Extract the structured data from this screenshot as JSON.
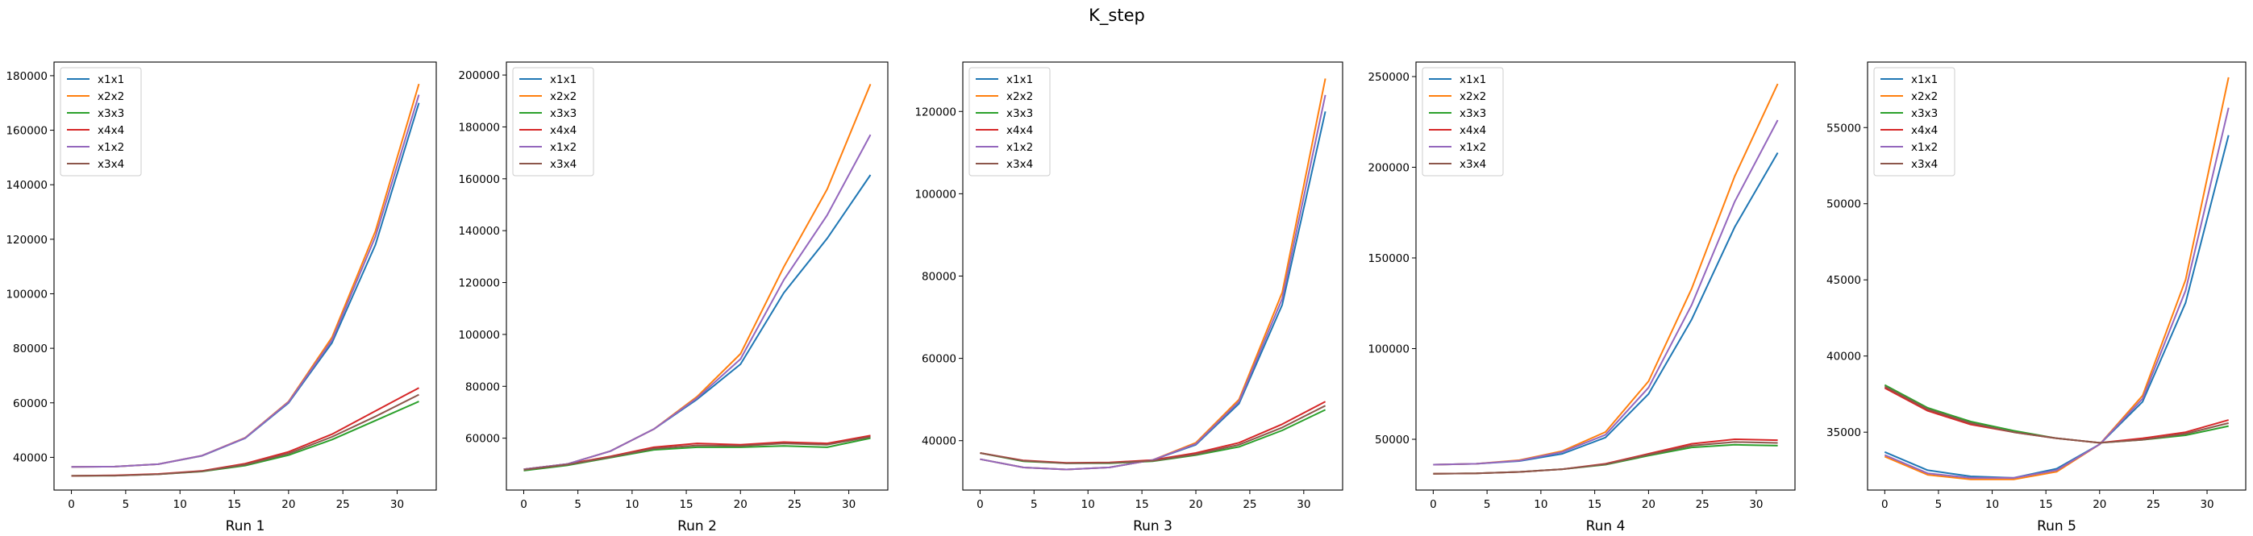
{
  "title": "K_step",
  "colors": {
    "x1x1": "#1f77b4",
    "x2x2": "#ff7f0e",
    "x3x3": "#2ca02c",
    "x4x4": "#d62728",
    "x1x2": "#9467bd",
    "x3x4": "#8c564b"
  },
  "chart_data": [
    {
      "type": "line",
      "xlabel": "Run 1",
      "legend_position": "top-left",
      "x": [
        0,
        4,
        8,
        12,
        16,
        20,
        24,
        28,
        32
      ],
      "xticks": [
        0,
        5,
        10,
        15,
        20,
        25,
        30
      ],
      "ylim": [
        28000,
        185000
      ],
      "yticks": [
        40000,
        60000,
        80000,
        100000,
        120000,
        140000,
        160000,
        180000
      ],
      "series": [
        {
          "name": "x1x1",
          "values": [
            36500,
            36600,
            37500,
            40500,
            47000,
            60000,
            82000,
            118000,
            170000
          ]
        },
        {
          "name": "x2x2",
          "values": [
            36500,
            36600,
            37500,
            40600,
            47200,
            60500,
            84000,
            123000,
            177000
          ]
        },
        {
          "name": "x3x3",
          "values": [
            33200,
            33300,
            33800,
            34800,
            37000,
            40800,
            46500,
            53500,
            60500
          ]
        },
        {
          "name": "x4x4",
          "values": [
            33200,
            33400,
            33900,
            35000,
            37700,
            42000,
            48500,
            57000,
            65500
          ]
        },
        {
          "name": "x1x2",
          "values": [
            36500,
            36600,
            37500,
            40600,
            47100,
            60300,
            83000,
            121000,
            173000
          ]
        },
        {
          "name": "x3x4",
          "values": [
            33200,
            33300,
            33800,
            34900,
            37300,
            41400,
            47500,
            55000,
            63000
          ]
        }
      ]
    },
    {
      "type": "line",
      "xlabel": "Run 2",
      "legend_position": "top-left",
      "x": [
        0,
        4,
        8,
        12,
        16,
        20,
        24,
        28,
        32
      ],
      "xticks": [
        0,
        5,
        10,
        15,
        20,
        25,
        30
      ],
      "ylim": [
        40000,
        205000
      ],
      "yticks": [
        60000,
        80000,
        100000,
        120000,
        140000,
        160000,
        180000,
        200000
      ],
      "series": [
        {
          "name": "x1x1",
          "values": [
            48000,
            50000,
            55000,
            63500,
            75000,
            88500,
            116000,
            137000,
            161500
          ]
        },
        {
          "name": "x2x2",
          "values": [
            48000,
            50000,
            55000,
            63500,
            76000,
            92500,
            126000,
            156000,
            196500
          ]
        },
        {
          "name": "x3x3",
          "values": [
            47500,
            49500,
            52500,
            55500,
            56500,
            56500,
            57000,
            56500,
            60000
          ]
        },
        {
          "name": "x4x4",
          "values": [
            48000,
            50000,
            53000,
            56500,
            58000,
            57500,
            58500,
            58000,
            61000
          ]
        },
        {
          "name": "x1x2",
          "values": [
            48000,
            50000,
            55000,
            63500,
            75500,
            90500,
            121000,
            146000,
            177000
          ]
        },
        {
          "name": "x3x4",
          "values": [
            47800,
            49800,
            52700,
            56000,
            57200,
            57000,
            58000,
            57500,
            60500
          ]
        }
      ]
    },
    {
      "type": "line",
      "xlabel": "Run 3",
      "legend_position": "top-left",
      "x": [
        0,
        4,
        8,
        12,
        16,
        20,
        24,
        28,
        32
      ],
      "xticks": [
        0,
        5,
        10,
        15,
        20,
        25,
        30
      ],
      "ylim": [
        28000,
        132000
      ],
      "yticks": [
        40000,
        60000,
        80000,
        100000,
        120000
      ],
      "series": [
        {
          "name": "x1x1",
          "values": [
            35500,
            33500,
            33000,
            33500,
            35300,
            39000,
            49000,
            73000,
            120000
          ]
        },
        {
          "name": "x2x2",
          "values": [
            35500,
            33500,
            33000,
            33500,
            35300,
            39500,
            50000,
            76000,
            128000
          ]
        },
        {
          "name": "x3x3",
          "values": [
            37000,
            35000,
            34500,
            34500,
            35000,
            36500,
            38500,
            42500,
            47500
          ]
        },
        {
          "name": "x4x4",
          "values": [
            37000,
            35200,
            34600,
            34700,
            35300,
            37000,
            39500,
            44000,
            49500
          ]
        },
        {
          "name": "x1x2",
          "values": [
            35500,
            33500,
            33000,
            33500,
            35300,
            39200,
            49500,
            74500,
            124000
          ]
        },
        {
          "name": "x3x4",
          "values": [
            37000,
            35100,
            34500,
            34600,
            35100,
            36700,
            39000,
            43200,
            48500
          ]
        }
      ]
    },
    {
      "type": "line",
      "xlabel": "Run 4",
      "legend_position": "top-left",
      "x": [
        0,
        4,
        8,
        12,
        16,
        20,
        24,
        28,
        32
      ],
      "xticks": [
        0,
        5,
        10,
        15,
        20,
        25,
        30
      ],
      "ylim": [
        22000,
        258000
      ],
      "yticks": [
        50000,
        100000,
        150000,
        200000,
        250000
      ],
      "series": [
        {
          "name": "x1x1",
          "values": [
            36000,
            36500,
            38000,
            42000,
            51000,
            75000,
            116000,
            167000,
            208000
          ]
        },
        {
          "name": "x2x2",
          "values": [
            36000,
            36500,
            38500,
            43500,
            54000,
            82000,
            133000,
            195000,
            246000
          ]
        },
        {
          "name": "x3x3",
          "values": [
            31000,
            31200,
            32000,
            33500,
            36000,
            41000,
            45500,
            47000,
            46500
          ]
        },
        {
          "name": "x4x4",
          "values": [
            31000,
            31200,
            32000,
            33500,
            36500,
            42000,
            47500,
            50000,
            49500
          ]
        },
        {
          "name": "x1x2",
          "values": [
            36000,
            36500,
            38200,
            43000,
            52500,
            78500,
            124000,
            181000,
            226000
          ]
        },
        {
          "name": "x3x4",
          "values": [
            31000,
            31200,
            32000,
            33500,
            36200,
            41500,
            46500,
            48500,
            48000
          ]
        }
      ]
    },
    {
      "type": "line",
      "xlabel": "Run 5",
      "legend_position": "top-left",
      "x": [
        0,
        4,
        8,
        12,
        16,
        20,
        24,
        28,
        32
      ],
      "xticks": [
        0,
        5,
        10,
        15,
        20,
        25,
        30
      ],
      "ylim": [
        31200,
        59300
      ],
      "yticks": [
        35000,
        40000,
        45000,
        50000,
        55000
      ],
      "series": [
        {
          "name": "x1x1",
          "values": [
            33700,
            32500,
            32100,
            32000,
            32600,
            34200,
            37000,
            43500,
            54500
          ]
        },
        {
          "name": "x2x2",
          "values": [
            33400,
            32200,
            31900,
            31900,
            32400,
            34200,
            37400,
            45000,
            58300
          ]
        },
        {
          "name": "x3x3",
          "values": [
            38100,
            36600,
            35700,
            35100,
            34600,
            34300,
            34500,
            34800,
            35400
          ]
        },
        {
          "name": "x4x4",
          "values": [
            37900,
            36400,
            35500,
            35000,
            34600,
            34300,
            34600,
            35000,
            35800
          ]
        },
        {
          "name": "x1x2",
          "values": [
            33500,
            32300,
            32000,
            32000,
            32500,
            34200,
            37200,
            44300,
            56300
          ]
        },
        {
          "name": "x3x4",
          "values": [
            38000,
            36500,
            35600,
            35000,
            34600,
            34300,
            34500,
            34900,
            35600
          ]
        }
      ]
    }
  ]
}
